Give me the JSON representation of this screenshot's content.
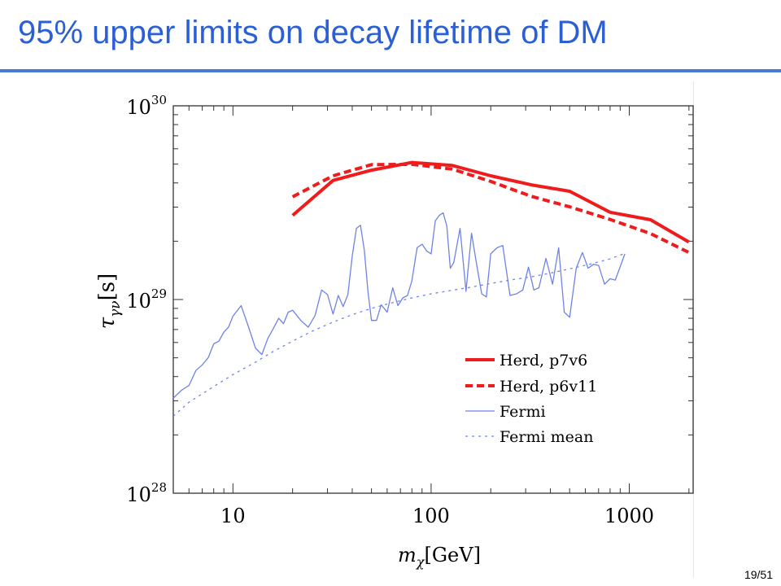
{
  "slide": {
    "title": "95% upper limits on decay lifetime of DM",
    "page_current": "19",
    "page_total": "51"
  },
  "chart_data": {
    "type": "line",
    "xlabel_symbol": "m",
    "xlabel_sub": "χ",
    "xlabel_unit": "[GeV]",
    "ylabel_symbol": "τ",
    "ylabel_sub": "γν",
    "ylabel_unit": "[s]",
    "x_scale": "log",
    "y_scale": "log",
    "xlim": [
      5,
      2100
    ],
    "ylim": [
      1e+28,
      1e+30
    ],
    "x_ticks": [
      {
        "value": 10,
        "label": "10"
      },
      {
        "value": 100,
        "label": "100"
      },
      {
        "value": 1000,
        "label": "1000"
      }
    ],
    "y_ticks": [
      {
        "value": 1e+28,
        "base": "10",
        "exp": "28"
      },
      {
        "value": 1e+29,
        "base": "10",
        "exp": "29"
      },
      {
        "value": 1e+30,
        "base": "10",
        "exp": "30"
      }
    ],
    "grid": false,
    "legend_position": "bottom-right",
    "series": [
      {
        "name": "Herd, p7v6",
        "color": "#ee1c1c",
        "style": "solid-thick",
        "x": [
          20,
          32,
          50,
          80,
          128,
          200,
          320,
          500,
          800,
          1280,
          2000
        ],
        "y": [
          2.72e+29,
          4.12e+29,
          4.65e+29,
          5.1e+29,
          4.92e+29,
          4.35e+29,
          3.91e+29,
          3.62e+29,
          2.82e+29,
          2.58e+29,
          1.98e+29
        ]
      },
      {
        "name": "Herd, p6v11",
        "color": "#ee1c1c",
        "style": "dashed-thick",
        "x": [
          20,
          32,
          50,
          80,
          128,
          200,
          320,
          500,
          800,
          1280,
          2000
        ],
        "y": [
          3.39e+29,
          4.35e+29,
          4.97e+29,
          4.99e+29,
          4.71e+29,
          4.07e+29,
          3.41e+29,
          3.01e+29,
          2.59e+29,
          2.19e+29,
          1.75e+29
        ]
      },
      {
        "name": "Fermi",
        "color": "#6f83e6",
        "style": "solid-thin",
        "x": [
          5,
          5.5,
          6,
          6.5,
          7,
          7.5,
          8,
          8.5,
          9,
          9.5,
          10,
          11,
          12,
          13,
          14,
          15,
          16,
          17,
          18,
          19,
          20,
          22,
          24,
          26,
          28,
          30,
          32,
          34,
          36,
          38,
          40,
          42,
          44,
          46,
          48,
          50,
          53,
          56,
          60,
          64,
          68,
          72,
          76,
          80,
          85,
          90,
          95,
          100,
          105,
          110,
          115,
          120,
          125,
          130,
          140,
          150,
          160,
          170,
          180,
          190,
          200,
          215,
          230,
          250,
          270,
          290,
          310,
          330,
          350,
          380,
          410,
          440,
          470,
          500,
          540,
          580,
          620,
          660,
          700,
          750,
          800,
          850,
          900,
          950
        ],
        "y": [
          3.1e+28,
          3.4e+28,
          3.6e+28,
          4.3e+28,
          4.6e+28,
          5e+28,
          5.9e+28,
          6.1e+28,
          6.8e+28,
          7.2e+28,
          8.2e+28,
          9.3e+28,
          7.2e+28,
          5.6e+28,
          5.2e+28,
          6.3e+28,
          7.1e+28,
          8e+28,
          7.5e+28,
          8.6e+28,
          8.8e+28,
          7.8e+28,
          7.2e+28,
          8.3e+28,
          1.12e+29,
          1.06e+29,
          8.4e+28,
          1.05e+29,
          9.2e+28,
          1.06e+29,
          1.68e+29,
          2.33e+29,
          2.42e+29,
          1.8e+29,
          1.1e+29,
          7.8e+28,
          7.8e+28,
          9.4e+28,
          8.6e+28,
          1.15e+29,
          9.3e+28,
          1.02e+29,
          1.05e+29,
          1.25e+29,
          1.85e+29,
          1.93e+29,
          1.78e+29,
          1.72e+29,
          2.55e+29,
          2.72e+29,
          2.8e+29,
          2.4e+29,
          1.45e+29,
          1.55e+29,
          2.33e+29,
          1.1e+29,
          2.2e+29,
          1.5e+29,
          1.07e+29,
          1.03e+29,
          1.72e+29,
          1.85e+29,
          1.9e+29,
          1.05e+29,
          1.07e+29,
          1.12e+29,
          1.47e+29,
          1.12e+29,
          1.15e+29,
          1.63e+29,
          1.2e+29,
          1.85e+29,
          8.6e+28,
          8.1e+28,
          1.45e+29,
          1.75e+29,
          1.45e+29,
          1.52e+29,
          1.5e+29,
          1.2e+29,
          1.28e+29,
          1.26e+29,
          1.48e+29,
          1.72e+29
        ]
      },
      {
        "name": "Fermi mean",
        "color": "#6f83e6",
        "style": "dotted-thin",
        "x": [
          5,
          6,
          8,
          10,
          13,
          16,
          20,
          25,
          32,
          40,
          50,
          63,
          80,
          100,
          130,
          160,
          200,
          250,
          320,
          400,
          500,
          630,
          800,
          950
        ],
        "y": [
          2.5e+28,
          2.95e+28,
          3.55e+28,
          4.1e+28,
          4.75e+28,
          5.4e+28,
          6.1e+28,
          6.85e+28,
          7.65e+28,
          8.35e+28,
          9e+28,
          9.6e+28,
          1.02e+29,
          1.07e+29,
          1.12e+29,
          1.16e+29,
          1.21e+29,
          1.26e+29,
          1.31e+29,
          1.37e+29,
          1.44e+29,
          1.52e+29,
          1.62e+29,
          1.73e+29
        ]
      }
    ]
  }
}
